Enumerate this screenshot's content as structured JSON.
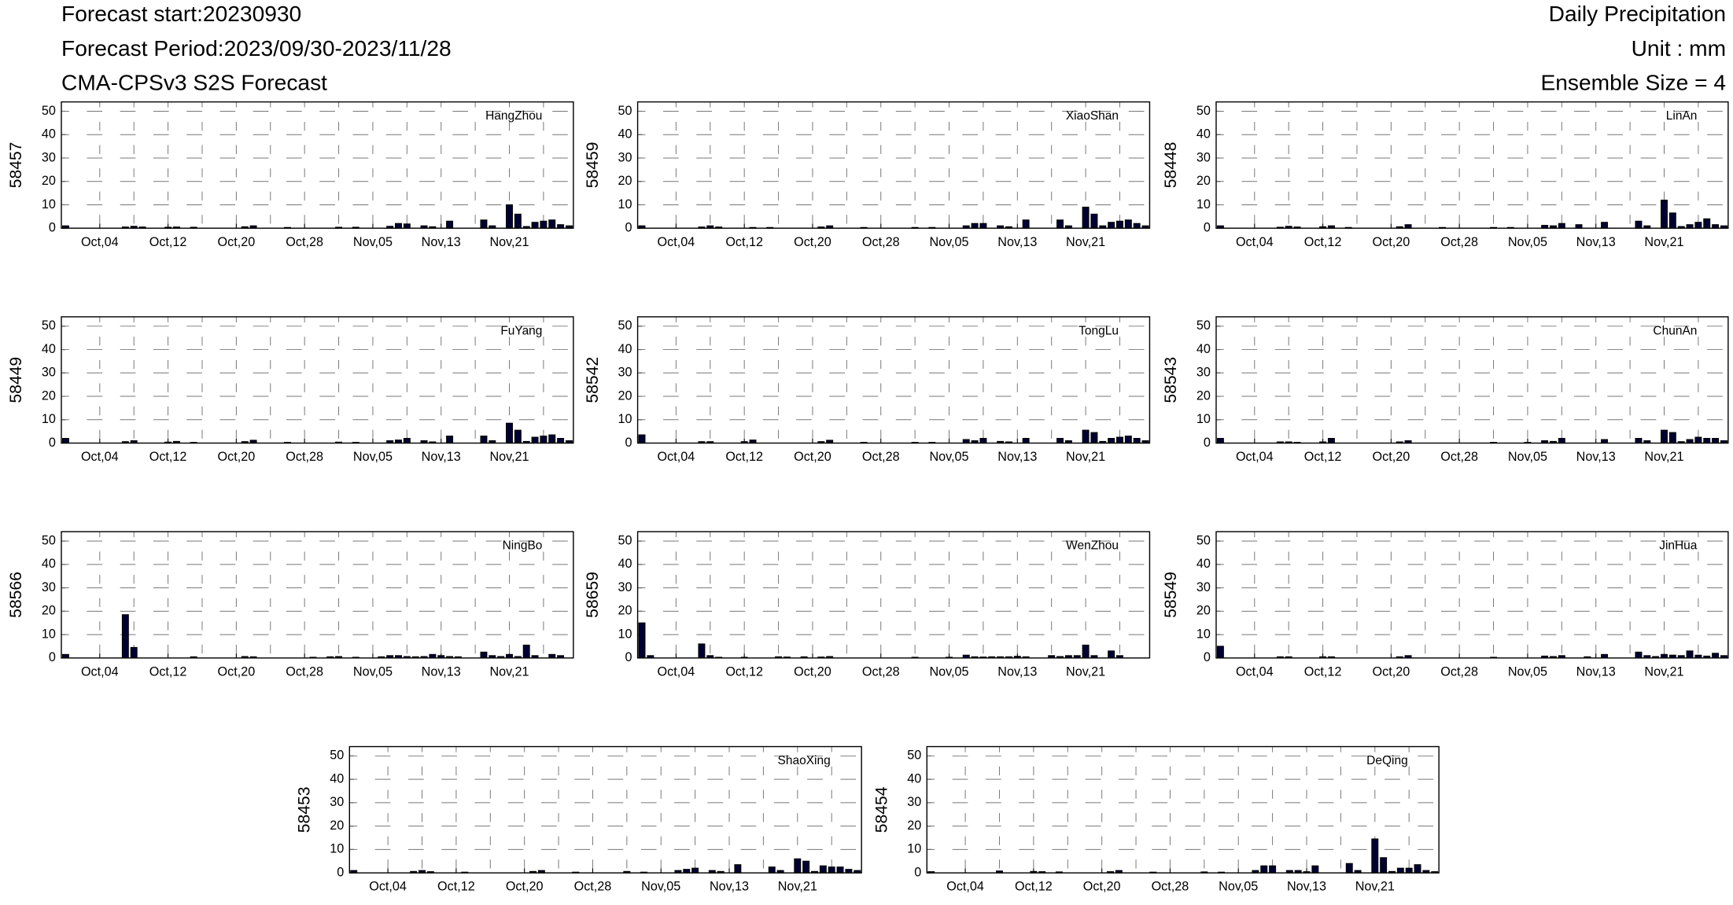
{
  "chart_data": {
    "type": "bar",
    "title": "Daily Precipitation",
    "subtitle": "Unit : mm",
    "annotations": [
      "Forecast start:20230930",
      "Forecast Period:2023/09/30-2023/11/28",
      "CMA-CPSv3 S2S Forecast",
      "Ensemble Size = 4"
    ],
    "categories": [
      null,
      null,
      null,
      null,
      "Oct,04",
      null,
      null,
      null,
      null,
      null,
      null,
      null,
      "Oct,12",
      null,
      null,
      null,
      null,
      null,
      null,
      null,
      "Oct,20",
      null,
      null,
      null,
      null,
      null,
      null,
      null,
      "Oct,28",
      null,
      null,
      null,
      null,
      null,
      null,
      null,
      "Nov,05",
      null,
      null,
      null,
      null,
      null,
      null,
      null,
      "Nov,13",
      null,
      null,
      null,
      null,
      null,
      null,
      null,
      "Nov,21",
      null,
      null,
      null,
      null,
      null,
      null,
      null
    ],
    "ylim": [
      0,
      54
    ],
    "yticks": [
      0,
      10,
      20,
      30,
      40,
      50
    ],
    "grid": true,
    "color": "#000033",
    "series": [
      {
        "name": "HangZhou",
        "id": "58457",
        "values": [
          1,
          0,
          0,
          0,
          0,
          0,
          0,
          0.5,
          0.8,
          0.5,
          0,
          0,
          0.4,
          0.5,
          0,
          0.4,
          0,
          0,
          0,
          0,
          0,
          0.6,
          1,
          0,
          0,
          0,
          0.3,
          0,
          0,
          0,
          0,
          0,
          0.4,
          0,
          0.4,
          0,
          0,
          0,
          0.8,
          2,
          1.8,
          0,
          1,
          0.6,
          0,
          3,
          0,
          0,
          0,
          3.5,
          1,
          0,
          10,
          6,
          0.7,
          2.5,
          3,
          3.5,
          1.5,
          1
        ]
      },
      {
        "name": "XiaoShan",
        "id": "58459",
        "values": [
          1,
          0,
          0,
          0,
          0,
          0,
          0,
          0.5,
          1,
          0.5,
          0,
          0,
          0,
          0.3,
          0,
          0.3,
          0,
          0,
          0,
          0,
          0,
          0.5,
          1,
          0,
          0,
          0,
          0.3,
          0,
          0,
          0,
          0,
          0,
          0.3,
          0,
          0.3,
          0,
          0,
          0,
          1,
          2,
          2,
          0,
          1,
          0.6,
          0,
          3.5,
          0,
          0,
          0,
          3.5,
          1,
          0,
          9,
          6,
          1,
          2.5,
          3,
          3.5,
          2,
          1
        ]
      },
      {
        "name": "LinAn",
        "id": "58448",
        "values": [
          1,
          0,
          0,
          0,
          0,
          0,
          0,
          0.4,
          0.8,
          0.5,
          0,
          0,
          0.6,
          1,
          0,
          0.3,
          0,
          0,
          0,
          0,
          0,
          0.6,
          1.5,
          0,
          0,
          0,
          0.3,
          0,
          0,
          0,
          0,
          0,
          0.3,
          0,
          0.3,
          0,
          0,
          0,
          1.2,
          1,
          2,
          0,
          1.5,
          0,
          0,
          2.5,
          0,
          0,
          0,
          3,
          1,
          0,
          12,
          6.5,
          0.7,
          1.5,
          2.5,
          4,
          1.5,
          1
        ]
      },
      {
        "name": "FuYang",
        "id": "58449",
        "values": [
          2,
          0,
          0,
          0,
          0,
          0,
          0,
          0.6,
          1,
          0,
          0,
          0,
          0.4,
          0.7,
          0,
          0.3,
          0,
          0,
          0,
          0,
          0,
          0.6,
          1.2,
          0,
          0,
          0,
          0.3,
          0,
          0,
          0,
          0,
          0,
          0.4,
          0,
          0.3,
          0,
          0,
          0,
          1,
          1.3,
          2,
          0,
          1,
          0.5,
          0,
          3,
          0,
          0,
          0,
          3,
          1,
          0,
          8.5,
          5.5,
          0.7,
          2.5,
          3,
          3.5,
          2,
          1
        ]
      },
      {
        "name": "TongLu",
        "id": "58542",
        "values": [
          3.5,
          0,
          0,
          0,
          0,
          0,
          0,
          0.6,
          0.6,
          0,
          0,
          0,
          0.6,
          1.3,
          0,
          0,
          0,
          0,
          0,
          0,
          0,
          0.6,
          1.2,
          0,
          0,
          0,
          0.3,
          0,
          0,
          0,
          0,
          0,
          0.3,
          0,
          0.3,
          0,
          0,
          0,
          1.5,
          1,
          2,
          0,
          0.7,
          0.5,
          0,
          2,
          0,
          0,
          0,
          2,
          1,
          0,
          5.5,
          4.5,
          0.7,
          2,
          2.5,
          3,
          2,
          1
        ]
      },
      {
        "name": "ChunAn",
        "id": "58543",
        "values": [
          2,
          0,
          0,
          0,
          0,
          0,
          0,
          0.5,
          0.5,
          0.3,
          0,
          0,
          0.5,
          2,
          0,
          0,
          0,
          0,
          0,
          0,
          0,
          0.5,
          1,
          0,
          0,
          0,
          0,
          0,
          0,
          0,
          0,
          0,
          0.3,
          0,
          0,
          0,
          0.3,
          0,
          1,
          0.7,
          2,
          0,
          0,
          0,
          0,
          1.5,
          0,
          0,
          0,
          2,
          1,
          0,
          5.5,
          4.5,
          0.6,
          1.5,
          2.5,
          2,
          2,
          1
        ]
      },
      {
        "name": "NingBo",
        "id": "58566",
        "values": [
          1.5,
          0,
          0,
          0,
          0,
          0,
          0,
          18.5,
          4.5,
          0,
          0,
          0,
          0,
          0,
          0,
          0.5,
          0,
          0,
          0,
          0,
          0,
          0.6,
          0.5,
          0,
          0,
          0,
          0,
          0,
          0,
          0.3,
          0,
          0.5,
          0.6,
          0,
          0.3,
          0,
          0,
          0.5,
          1,
          1,
          0.6,
          0.5,
          0.6,
          1.5,
          1,
          0.6,
          0.5,
          0,
          0,
          2.5,
          1,
          0.6,
          1.5,
          0.6,
          5.5,
          1,
          0,
          1.5,
          1,
          0
        ]
      },
      {
        "name": "WenZhou",
        "id": "58659",
        "values": [
          15,
          1,
          0,
          0,
          0,
          0,
          0,
          6,
          1,
          0.3,
          0,
          0,
          0.3,
          0,
          0,
          0,
          0.5,
          0.4,
          0,
          0.5,
          0,
          0.4,
          0.6,
          0,
          0,
          0,
          0,
          0,
          0,
          0,
          0,
          0,
          0.3,
          0,
          0,
          0,
          0.3,
          0,
          1.2,
          0.5,
          0.4,
          0.5,
          0.5,
          0.5,
          0.7,
          0.5,
          0,
          0,
          1,
          0.6,
          1,
          1,
          5.5,
          1,
          0,
          3,
          1,
          0,
          0,
          0
        ]
      },
      {
        "name": "JinHua",
        "id": "58549",
        "values": [
          5,
          0,
          0,
          0,
          0,
          0,
          0,
          0.5,
          0.5,
          0,
          0,
          0,
          0.5,
          0.5,
          0,
          0,
          0,
          0,
          0,
          0,
          0,
          0.5,
          1,
          0,
          0,
          0,
          0,
          0,
          0,
          0,
          0,
          0,
          0.3,
          0,
          0,
          0,
          0,
          0,
          0.8,
          0.6,
          1,
          0,
          0,
          0.5,
          0,
          1.5,
          0,
          0,
          0,
          2.5,
          1,
          0.6,
          1.5,
          1.2,
          1,
          3,
          1.2,
          0.8,
          2,
          1
        ]
      },
      {
        "name": "ShaoXing",
        "id": "58453",
        "values": [
          1,
          0,
          0,
          0,
          0,
          0,
          0,
          0.6,
          1,
          0.5,
          0,
          0,
          0,
          0.3,
          0,
          0,
          0,
          0,
          0,
          0,
          0,
          0.6,
          1,
          0,
          0,
          0,
          0.3,
          0,
          0,
          0,
          0,
          0,
          0.6,
          0,
          0.3,
          0,
          0,
          0,
          1,
          1.5,
          2,
          0,
          1,
          0.6,
          0,
          3.5,
          0,
          0,
          0,
          2.5,
          1,
          0,
          6,
          5,
          0.6,
          3,
          2.5,
          2.5,
          1.5,
          1
        ]
      },
      {
        "name": "DeQing",
        "id": "58454",
        "values": [
          0.5,
          0,
          0,
          0,
          0,
          0,
          0,
          0,
          0.8,
          0,
          0,
          0,
          0.6,
          0.5,
          0,
          0.4,
          0,
          0,
          0,
          0,
          0,
          0.5,
          1,
          0,
          0,
          0,
          0.3,
          0,
          0,
          0,
          0,
          0,
          0.4,
          0,
          0.3,
          0,
          0,
          0,
          1,
          3,
          3,
          0,
          1,
          1,
          0.5,
          3,
          0,
          0,
          0,
          4,
          1,
          0,
          14.5,
          6.5,
          0.6,
          2,
          2,
          3.5,
          1,
          0.5
        ]
      }
    ]
  }
}
